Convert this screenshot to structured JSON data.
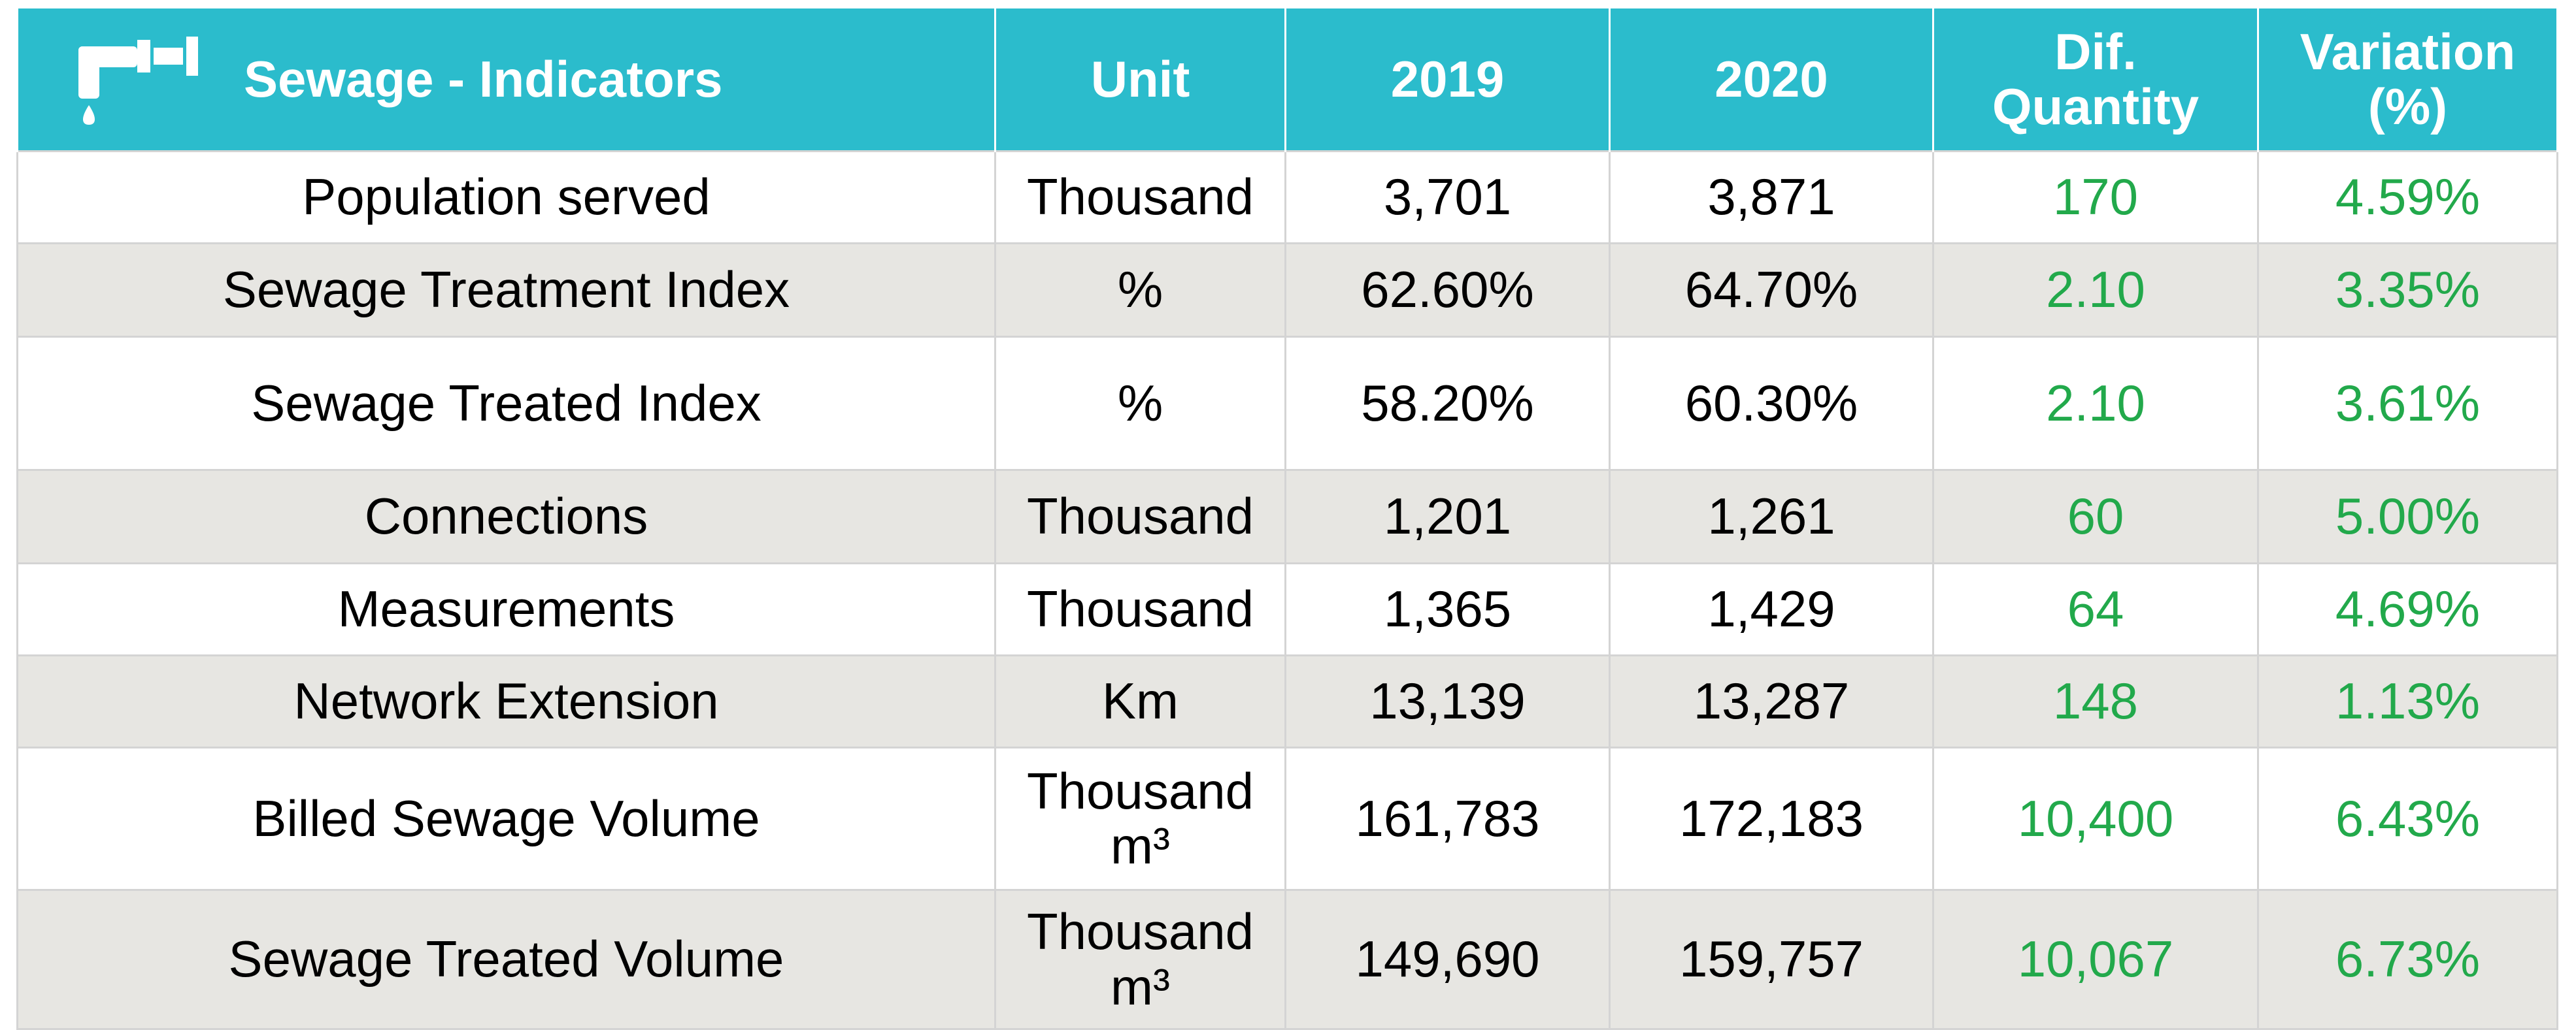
{
  "header": {
    "title": "Sewage - Indicators",
    "columns": [
      "Unit",
      "2019",
      "2020",
      "Dif. Quantity",
      "Variation (%)"
    ]
  },
  "rows": [
    [
      "Population served",
      "Thousand",
      "3,701",
      "3,871",
      "170",
      "4.59%"
    ],
    [
      "Sewage Treatment Index",
      "%",
      "62.60%",
      "64.70%",
      "2.10",
      "3.35%"
    ],
    [
      "Sewage Treated Index",
      "%",
      "58.20%",
      "60.30%",
      "2.10",
      "3.61%"
    ],
    [
      "Connections",
      "Thousand",
      "1,201",
      "1,261",
      "60",
      "5.00%"
    ],
    [
      "Measurements",
      "Thousand",
      "1,365",
      "1,429",
      "64",
      "4.69%"
    ],
    [
      "Network Extension",
      "Km",
      "13,139",
      "13,287",
      "148",
      "1.13%"
    ],
    [
      "Billed Sewage Volume",
      "Thousand m³",
      "161,783",
      "172,183",
      "10,400",
      "6.43%"
    ],
    [
      "Sewage Treated Volume",
      "Thousand m³",
      "149,690",
      "159,757",
      "10,067",
      "6.73%"
    ]
  ]
}
